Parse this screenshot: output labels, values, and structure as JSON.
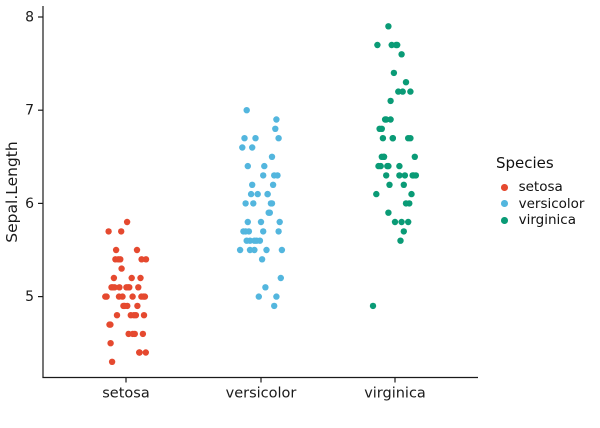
{
  "figure": {
    "background": "#FFFFFF",
    "axis_color": "#1A1A1A",
    "text_color": "#1A1A1A"
  },
  "chart_data": {
    "type": "scatter",
    "subtype": "jitter-strip-plot",
    "ylabel": "Sepal.Length",
    "x_categories": [
      "setosa",
      "versicolor",
      "virginica"
    ],
    "y_ticks": [
      5,
      6,
      7,
      8
    ],
    "ylim": [
      4.12,
      8.08
    ],
    "grid": false,
    "legend": {
      "title": "Species",
      "position": "right",
      "entries": [
        {
          "label": "setosa",
          "color": "#E5492F"
        },
        {
          "label": "versicolor",
          "color": "#53B6DE"
        },
        {
          "label": "virginica",
          "color": "#0A9B76"
        }
      ]
    },
    "series": [
      {
        "name": "setosa",
        "color": "#E5492F",
        "values": [
          5.1,
          4.9,
          4.7,
          4.6,
          5.0,
          5.4,
          4.6,
          5.0,
          4.4,
          4.9,
          5.4,
          4.8,
          4.8,
          4.3,
          5.8,
          5.7,
          5.4,
          5.1,
          5.7,
          5.1,
          5.4,
          5.1,
          4.6,
          5.1,
          4.8,
          5.0,
          5.0,
          5.2,
          5.2,
          4.7,
          4.8,
          5.4,
          5.2,
          5.5,
          4.9,
          5.0,
          5.5,
          4.9,
          4.4,
          5.1,
          5.0,
          4.5,
          4.4,
          5.0,
          5.1,
          4.8,
          5.1,
          4.6,
          5.3,
          5.0
        ],
        "jitter": [
          -0.3,
          0.52,
          -0.71,
          0.12,
          0.8,
          -0.48,
          0.31,
          -0.88,
          0.62,
          -0.12,
          0.91,
          -0.41,
          0.22,
          -0.63,
          0.05,
          -0.79,
          0.71,
          0.02,
          -0.22,
          0.56,
          -0.35,
          0.15,
          0.77,
          -0.66,
          0.45,
          -0.16,
          0.86,
          -0.55,
          0.26,
          -0.75,
          0.36,
          -0.26,
          0.66,
          -0.45,
          0.06,
          -0.94,
          0.5,
          -0.06,
          0.9,
          -0.52,
          0.3,
          -0.7,
          0.6,
          -0.32,
          0.1,
          0.82,
          -0.6,
          0.4,
          -0.2,
          0.7
        ]
      },
      {
        "name": "versicolor",
        "color": "#53B6DE",
        "values": [
          7.0,
          6.4,
          6.9,
          5.5,
          6.5,
          5.7,
          6.3,
          4.9,
          6.6,
          5.2,
          5.0,
          5.9,
          6.0,
          6.1,
          5.6,
          6.7,
          5.6,
          5.8,
          6.2,
          5.6,
          5.9,
          6.1,
          6.3,
          6.1,
          6.4,
          6.6,
          6.8,
          6.7,
          6.0,
          5.7,
          5.5,
          5.5,
          5.8,
          6.0,
          5.4,
          6.0,
          6.7,
          6.3,
          5.6,
          5.5,
          5.5,
          6.1,
          5.8,
          5.0,
          5.6,
          5.7,
          5.7,
          6.2,
          5.1,
          5.7
        ],
        "jitter": [
          -0.65,
          -0.6,
          0.7,
          -0.3,
          0.5,
          -0.8,
          0.1,
          0.6,
          -0.4,
          0.9,
          -0.1,
          0.4,
          -0.7,
          0.3,
          -0.5,
          0.8,
          -0.2,
          0.0,
          0.55,
          -0.65,
          0.35,
          -0.15,
          0.75,
          -0.45,
          0.15,
          -0.85,
          0.65,
          -0.25,
          0.45,
          -0.55,
          0.25,
          -0.95,
          0.85,
          -0.35,
          0.05,
          0.5,
          -0.75,
          0.6,
          -0.05,
          0.95,
          -0.5,
          0.3,
          -0.6,
          0.7,
          -0.3,
          0.1,
          0.8,
          -0.4,
          0.2,
          -0.7
        ]
      },
      {
        "name": "virginica",
        "color": "#0A9B76",
        "values": [
          6.3,
          5.8,
          7.1,
          6.3,
          6.5,
          7.6,
          4.9,
          7.3,
          6.7,
          7.2,
          6.5,
          6.4,
          6.8,
          5.7,
          5.8,
          6.4,
          6.5,
          7.7,
          7.7,
          6.0,
          6.9,
          5.6,
          7.7,
          6.3,
          6.7,
          7.2,
          6.2,
          6.1,
          6.4,
          7.2,
          7.4,
          7.9,
          6.4,
          6.3,
          6.1,
          7.7,
          6.3,
          6.4,
          6.0,
          6.9,
          6.7,
          6.9,
          5.8,
          6.8,
          6.7,
          6.7,
          6.3,
          6.5,
          6.2,
          5.9
        ],
        "jitter": [
          -0.4,
          0.6,
          -0.2,
          0.8,
          -0.6,
          0.3,
          -1.0,
          0.5,
          -0.1,
          0.7,
          -0.5,
          0.2,
          -0.7,
          0.4,
          0.0,
          -0.3,
          0.9,
          -0.8,
          0.1,
          0.65,
          -0.45,
          0.25,
          -0.15,
          0.85,
          -0.55,
          0.35,
          -0.25,
          0.75,
          -0.65,
          0.15,
          -0.05,
          -0.3,
          -0.35,
          0.45,
          -0.85,
          0.05,
          0.95,
          -0.75,
          0.5,
          -0.2,
          0.6,
          -0.4,
          0.3,
          -0.6,
          0.7,
          -0.1,
          0.2,
          -0.5,
          0.4,
          -0.3
        ]
      }
    ]
  }
}
